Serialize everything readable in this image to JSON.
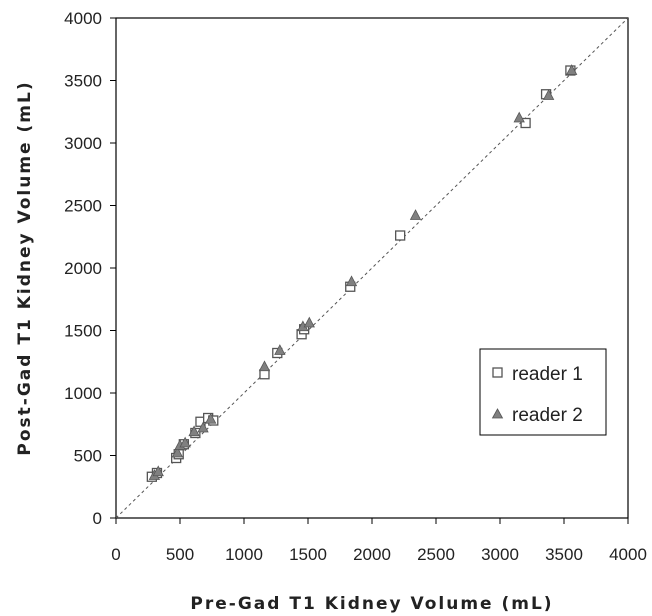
{
  "chart_data": {
    "type": "scatter",
    "title": "",
    "xlabel": "Pre-Gad T1 Kidney Volume (mL)",
    "ylabel": "Post-Gad T1 Kidney Volume (mL)",
    "xlim": [
      0,
      4000
    ],
    "ylim": [
      0,
      4000
    ],
    "xticks": [
      0,
      500,
      1000,
      1500,
      2000,
      2500,
      3000,
      3500,
      4000
    ],
    "yticks": [
      0,
      500,
      1000,
      1500,
      2000,
      2500,
      3000,
      3500,
      4000
    ],
    "grid": false,
    "legend_position": "bottom-right",
    "reference_line": "identity (y = x), dashed",
    "series": [
      {
        "name": "reader 1",
        "marker": "open-square",
        "color": "#555555",
        "points": [
          [
            280,
            330
          ],
          [
            320,
            360
          ],
          [
            470,
            480
          ],
          [
            490,
            510
          ],
          [
            530,
            590
          ],
          [
            660,
            770
          ],
          [
            720,
            800
          ],
          [
            760,
            780
          ],
          [
            620,
            680
          ],
          [
            1160,
            1150
          ],
          [
            1260,
            1320
          ],
          [
            1450,
            1470
          ],
          [
            1470,
            1510
          ],
          [
            1830,
            1850
          ],
          [
            2220,
            2260
          ],
          [
            3200,
            3160
          ],
          [
            3360,
            3390
          ],
          [
            3550,
            3580
          ]
        ]
      },
      {
        "name": "reader 2",
        "marker": "filled-triangle",
        "color": "#808080",
        "points": [
          [
            300,
            340
          ],
          [
            330,
            370
          ],
          [
            480,
            520
          ],
          [
            500,
            580
          ],
          [
            540,
            600
          ],
          [
            610,
            690
          ],
          [
            680,
            720
          ],
          [
            740,
            790
          ],
          [
            1160,
            1210
          ],
          [
            1280,
            1340
          ],
          [
            1460,
            1530
          ],
          [
            1510,
            1560
          ],
          [
            1840,
            1890
          ],
          [
            2340,
            2420
          ],
          [
            3150,
            3200
          ],
          [
            3380,
            3380
          ],
          [
            3560,
            3580
          ]
        ]
      }
    ]
  }
}
